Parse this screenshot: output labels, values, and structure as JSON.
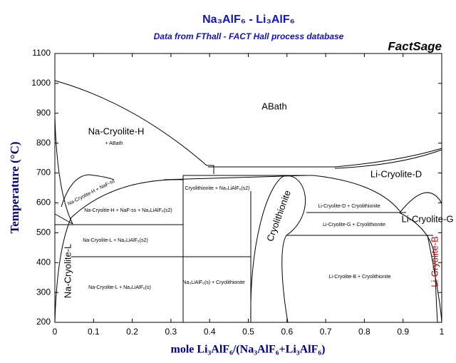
{
  "chart_data": {
    "type": "phase-diagram",
    "title": "Na₃AlF₆ - Li₃AlF₆",
    "subtitle": "Data from FThall - FACT Hall process database",
    "brand": "FactSage",
    "x_label": "mole Li₃AlF₆/(Na₃AlF₆+Li₃AlF₆)",
    "y_label": "Temperature (°C)",
    "xlim": [
      0,
      1
    ],
    "xticks": [
      0,
      0.1,
      0.2,
      0.3,
      0.4,
      0.5,
      0.6,
      0.7,
      0.8,
      0.9,
      1
    ],
    "ylim": [
      200,
      1100
    ],
    "yticks": [
      200,
      300,
      400,
      500,
      600,
      700,
      800,
      900,
      1000,
      1100
    ],
    "annotations": [
      "ABath",
      "Na-Cryolite-H",
      "+ ABath",
      "Li-Cryolite-D",
      "Li-Cryolite-G",
      "Li-Cryolite-B",
      "Na-Cryolite-L",
      "Cryolithionite",
      "Na-Cryolite-H + NaF-ss",
      "Na-Cryolite-H + NaF-ss + Na₃LiAlF₆(s2)",
      "Cryolithionite + Na₃LiAlF₆(s2)",
      "Na-Cryolite-L + Na₃LiAlF₆(s2)",
      "Na-Cryolite-L + Na₃LiAlF₆(s)",
      "Na₃LiAlF₆(s) + Cryolithionite",
      "Li-Cryolite-D + Cryolithionite",
      "Li-Cryolite-G + Cryolithionite",
      "Li-Cryolite-B + Cryolithionite"
    ]
  }
}
